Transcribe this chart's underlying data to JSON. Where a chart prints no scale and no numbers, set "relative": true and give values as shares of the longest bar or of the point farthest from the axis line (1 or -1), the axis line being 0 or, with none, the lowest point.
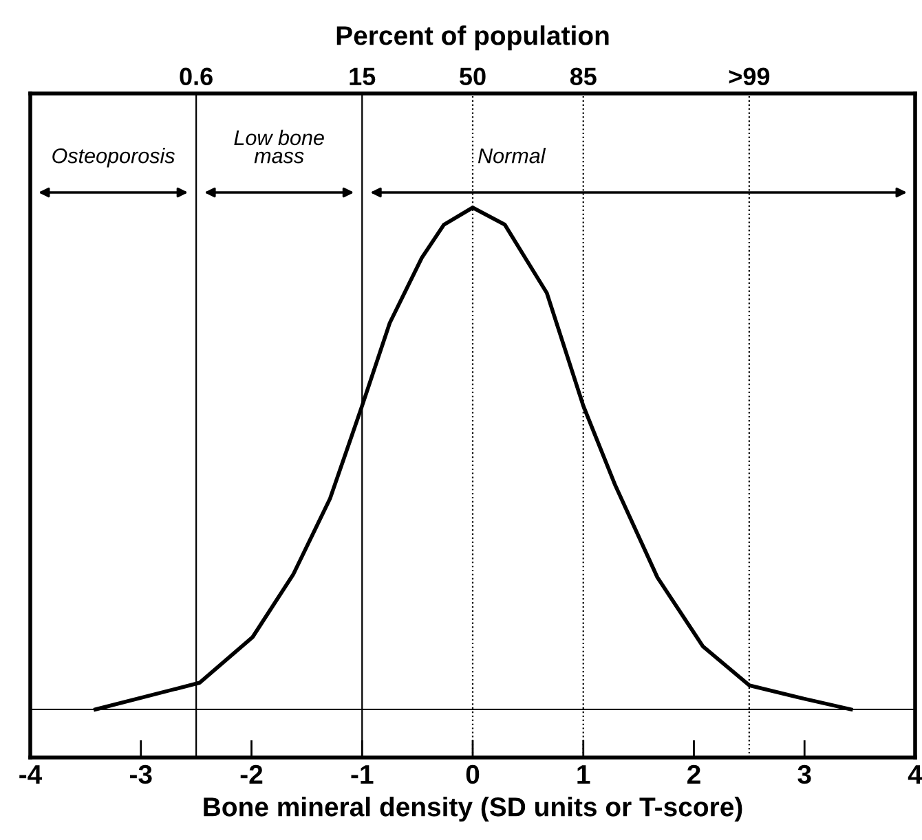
{
  "chart_data": {
    "type": "line",
    "relative": true,
    "xlabel": "Bone mineral density (SD units or T-score)",
    "x2label": "Percent of population",
    "series": [
      {
        "color": "#000000",
        "x": [
          -3.41,
          -2.47,
          -1.99,
          -1.62,
          -1.29,
          -1.0,
          -0.75,
          -0.46,
          -0.26,
          0,
          0.29,
          0.67,
          1.0,
          1.29,
          1.67,
          2.08,
          2.5,
          3.0,
          3.42
        ],
        "values": [
          0,
          0.053,
          0.144,
          0.27,
          0.42,
          0.605,
          0.77,
          0.9,
          0.966,
          1,
          0.966,
          0.83,
          0.605,
          0.446,
          0.263,
          0.126,
          0.048,
          0.021,
          0
        ]
      }
    ],
    "xlim": [
      -4,
      4
    ],
    "xticks": [
      -4,
      -3,
      -2,
      -1,
      0,
      1,
      2,
      3,
      4
    ],
    "ref_lines": [
      {
        "axis": "x",
        "value": -2.5,
        "line_style": "solid"
      },
      {
        "axis": "x",
        "value": -1,
        "line_style": "solid"
      },
      {
        "axis": "x",
        "value": 0,
        "line_style": "dotted"
      },
      {
        "axis": "x",
        "value": 1,
        "line_style": "dotted"
      },
      {
        "axis": "x",
        "value": 2.5,
        "line_style": "dotted"
      }
    ],
    "annotations": [
      "Osteoporosis",
      "Low bone\nmass",
      "Normal",
      "0.6",
      "15",
      "50",
      "85",
      ">99"
    ],
    "grid": false,
    "legend": false,
    "marker": "none",
    "line_style": "solid"
  }
}
